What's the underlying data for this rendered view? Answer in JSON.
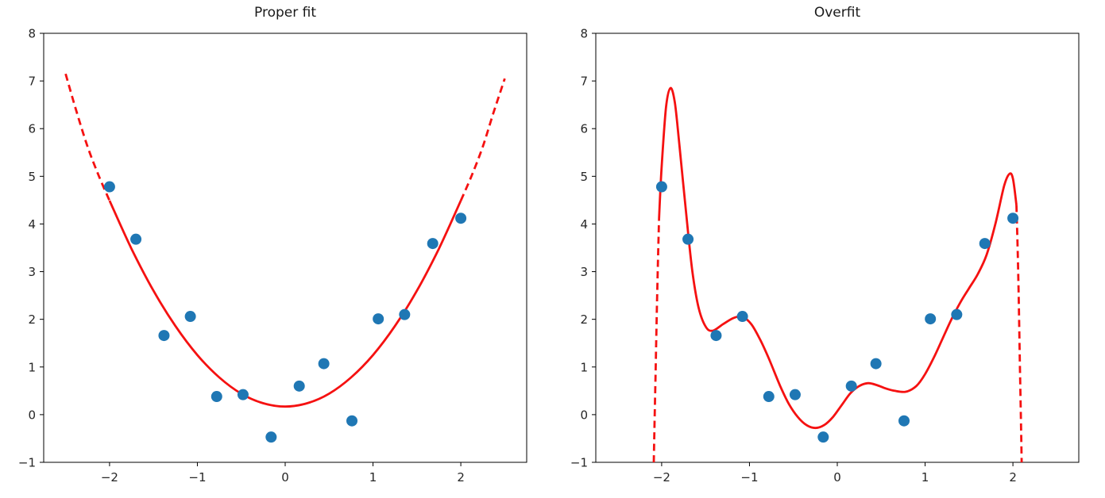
{
  "figure": {
    "background": "#ffffff",
    "charts_count": 2
  },
  "chart_data": [
    {
      "type": "scatter",
      "title": "Proper fit",
      "xlabel": "",
      "ylabel": "",
      "xlim": [
        -2.75,
        2.75
      ],
      "ylim": [
        -1,
        8
      ],
      "xticks": [
        -2,
        -1,
        0,
        1,
        2
      ],
      "yticks": [
        -1,
        0,
        1,
        2,
        3,
        4,
        5,
        6,
        7,
        8
      ],
      "grid": false,
      "point_color": "#1f77b4",
      "curve_color": "#f51111",
      "scatter_x": [
        -2.0,
        -1.7,
        -1.38,
        -1.08,
        -0.78,
        -0.48,
        -0.16,
        0.16,
        0.44,
        0.76,
        1.06,
        1.36,
        1.68,
        2.0
      ],
      "scatter_y": [
        4.78,
        3.68,
        1.66,
        2.06,
        0.38,
        0.42,
        -0.47,
        0.6,
        1.07,
        -0.13,
        2.01,
        2.1,
        3.59,
        4.12
      ],
      "curve_segments": [
        {
          "style": "dashed",
          "points": [
            [
              -2.5,
              7.15
            ],
            [
              -2.375,
              6.35
            ],
            [
              -2.25,
              5.62
            ],
            [
              -2.125,
              5.02
            ],
            [
              -2.0,
              4.49
            ]
          ]
        },
        {
          "style": "solid",
          "points": [
            [
              -2.0,
              4.49
            ],
            [
              -1.75,
              3.48
            ],
            [
              -1.5,
              2.6
            ],
            [
              -1.25,
              1.86
            ],
            [
              -1.0,
              1.25
            ],
            [
              -0.75,
              0.78
            ],
            [
              -0.5,
              0.44
            ],
            [
              -0.25,
              0.24
            ],
            [
              0.0,
              0.17
            ],
            [
              0.25,
              0.24
            ],
            [
              0.5,
              0.44
            ],
            [
              0.75,
              0.78
            ],
            [
              1.0,
              1.25
            ],
            [
              1.25,
              1.86
            ],
            [
              1.5,
              2.6
            ],
            [
              1.75,
              3.48
            ],
            [
              2.0,
              4.49
            ]
          ]
        },
        {
          "style": "dashed",
          "points": [
            [
              2.0,
              4.49
            ],
            [
              2.125,
              5.02
            ],
            [
              2.25,
              5.62
            ],
            [
              2.375,
              6.35
            ],
            [
              2.5,
              7.05
            ]
          ]
        }
      ]
    },
    {
      "type": "scatter",
      "title": "Overfit",
      "xlabel": "",
      "ylabel": "",
      "xlim": [
        -2.75,
        2.75
      ],
      "ylim": [
        -1,
        8
      ],
      "xticks": [
        -2,
        -1,
        0,
        1,
        2
      ],
      "yticks": [
        -1,
        0,
        1,
        2,
        3,
        4,
        5,
        6,
        7,
        8
      ],
      "grid": false,
      "point_color": "#1f77b4",
      "curve_color": "#f51111",
      "scatter_x": [
        -2.0,
        -1.7,
        -1.38,
        -1.08,
        -0.78,
        -0.48,
        -0.16,
        0.16,
        0.44,
        0.76,
        1.06,
        1.36,
        1.68,
        2.0
      ],
      "scatter_y": [
        4.78,
        3.68,
        1.66,
        2.06,
        0.38,
        0.42,
        -0.47,
        0.6,
        1.07,
        -0.13,
        2.01,
        2.1,
        3.59,
        4.12
      ],
      "curve_segments": [
        {
          "style": "dashed",
          "points": [
            [
              -2.09,
              -1.0
            ],
            [
              -2.07,
              0.8
            ],
            [
              -2.05,
              2.6
            ],
            [
              -2.03,
              4.1
            ]
          ]
        },
        {
          "style": "solid",
          "points": [
            [
              -2.03,
              4.1
            ],
            [
              -2.0,
              5.2
            ],
            [
              -1.95,
              6.45
            ],
            [
              -1.9,
              6.85
            ],
            [
              -1.85,
              6.55
            ],
            [
              -1.8,
              5.7
            ],
            [
              -1.72,
              4.2
            ],
            [
              -1.65,
              3.0
            ],
            [
              -1.58,
              2.25
            ],
            [
              -1.5,
              1.85
            ],
            [
              -1.42,
              1.76
            ],
            [
              -1.3,
              1.9
            ],
            [
              -1.18,
              2.03
            ],
            [
              -1.08,
              2.05
            ],
            [
              -0.98,
              1.9
            ],
            [
              -0.88,
              1.58
            ],
            [
              -0.78,
              1.18
            ],
            [
              -0.65,
              0.6
            ],
            [
              -0.55,
              0.22
            ],
            [
              -0.45,
              -0.05
            ],
            [
              -0.35,
              -0.22
            ],
            [
              -0.25,
              -0.28
            ],
            [
              -0.15,
              -0.22
            ],
            [
              -0.05,
              -0.05
            ],
            [
              0.05,
              0.2
            ],
            [
              0.15,
              0.45
            ],
            [
              0.25,
              0.6
            ],
            [
              0.35,
              0.66
            ],
            [
              0.45,
              0.62
            ],
            [
              0.55,
              0.55
            ],
            [
              0.65,
              0.5
            ],
            [
              0.78,
              0.48
            ],
            [
              0.9,
              0.6
            ],
            [
              1.0,
              0.85
            ],
            [
              1.1,
              1.2
            ],
            [
              1.2,
              1.6
            ],
            [
              1.3,
              2.0
            ],
            [
              1.4,
              2.35
            ],
            [
              1.5,
              2.65
            ],
            [
              1.6,
              2.95
            ],
            [
              1.7,
              3.35
            ],
            [
              1.8,
              4.0
            ],
            [
              1.9,
              4.8
            ],
            [
              1.96,
              5.05
            ],
            [
              2.0,
              4.95
            ],
            [
              2.04,
              4.4
            ]
          ]
        },
        {
          "style": "dashed",
          "points": [
            [
              2.04,
              4.4
            ],
            [
              2.06,
              3.0
            ],
            [
              2.08,
              1.0
            ],
            [
              2.1,
              -1.0
            ]
          ]
        }
      ]
    }
  ]
}
